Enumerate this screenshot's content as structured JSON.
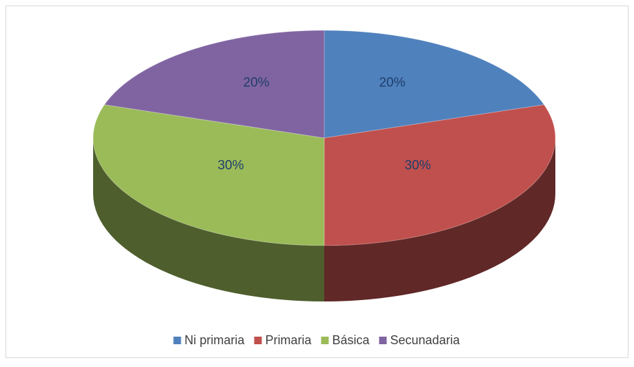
{
  "chart_data": {
    "type": "pie3d",
    "categories": [
      "Ni primaria",
      "Primaria",
      "Básica",
      "Secunadaria"
    ],
    "values": [
      20,
      30,
      30,
      20
    ],
    "value_labels": [
      "20%",
      "30%",
      "30%",
      "20%"
    ],
    "colors": [
      "#4f81bd",
      "#c0504d",
      "#9bbb59",
      "#8064a2"
    ],
    "legend": "bottom"
  }
}
